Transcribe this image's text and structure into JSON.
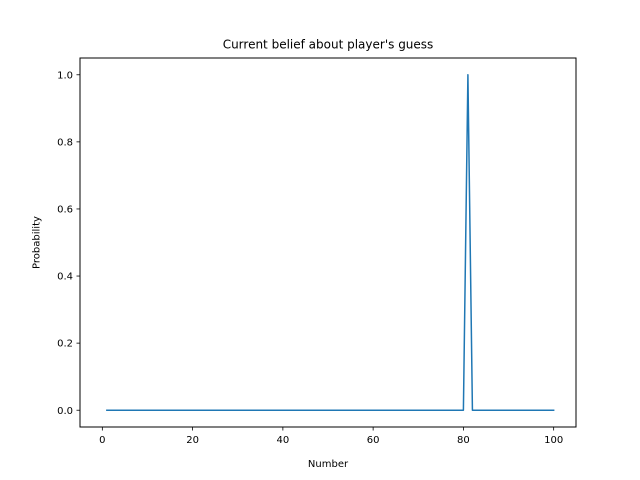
{
  "chart_data": {
    "type": "line",
    "title": "Current belief about player's guess",
    "xlabel": "Number",
    "ylabel": "Probability",
    "xlim": [
      -4.95,
      104.95
    ],
    "ylim": [
      -0.05,
      1.05
    ],
    "xticks": [
      0,
      20,
      40,
      60,
      80,
      100
    ],
    "yticks": [
      0.0,
      0.2,
      0.4,
      0.6,
      0.8,
      1.0
    ],
    "xtick_labels": [
      "0",
      "20",
      "40",
      "60",
      "80",
      "100"
    ],
    "ytick_labels": [
      "0.0",
      "0.2",
      "0.4",
      "0.6",
      "0.8",
      "1.0"
    ],
    "grid": false,
    "series": [
      {
        "color": "#1f77b4",
        "points": [
          [
            1,
            0
          ],
          [
            80,
            0
          ],
          [
            81,
            1
          ],
          [
            82,
            0
          ],
          [
            100,
            0
          ]
        ]
      }
    ]
  }
}
